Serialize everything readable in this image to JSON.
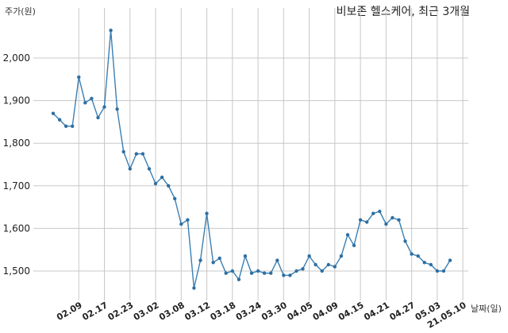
{
  "chart_data": {
    "type": "line",
    "title": "비보존 헬스케어, 최근 3개월",
    "ylabel": "주가(원)",
    "xlabel": "날짜(일)",
    "ylim": [
      1440,
      2080
    ],
    "yticks": [
      {
        "value": 1500,
        "label": "1,500"
      },
      {
        "value": 1600,
        "label": "1,600"
      },
      {
        "value": 1700,
        "label": "1,700"
      },
      {
        "value": 1800,
        "label": "1,800"
      },
      {
        "value": 1900,
        "label": "1,900"
      },
      {
        "value": 2000,
        "label": "2,000"
      }
    ],
    "xticks": [
      {
        "index": 4,
        "label": "02.09"
      },
      {
        "index": 8,
        "label": "02.17"
      },
      {
        "index": 12,
        "label": "02.23"
      },
      {
        "index": 16,
        "label": "03.02"
      },
      {
        "index": 20,
        "label": "03.08"
      },
      {
        "index": 24,
        "label": "03.12"
      },
      {
        "index": 28,
        "label": "03.18"
      },
      {
        "index": 32,
        "label": "03.24"
      },
      {
        "index": 36,
        "label": "03.30"
      },
      {
        "index": 40,
        "label": "04.05"
      },
      {
        "index": 44,
        "label": "04.09"
      },
      {
        "index": 48,
        "label": "04.15"
      },
      {
        "index": 52,
        "label": "04.21"
      },
      {
        "index": 56,
        "label": "04.27"
      },
      {
        "index": 60,
        "label": "05.03"
      },
      {
        "index": 64,
        "label": "21.05.10"
      }
    ],
    "grid": true,
    "series": [
      {
        "values": [
          1870,
          1855,
          1840,
          1840,
          1955,
          1895,
          1905,
          1860,
          1885,
          2065,
          1880,
          1780,
          1740,
          1775,
          1775,
          1740,
          1705,
          1720,
          1700,
          1670,
          1610,
          1620,
          1460,
          1525,
          1635,
          1520,
          1530,
          1495,
          1500,
          1480,
          1535,
          1495,
          1500,
          1495,
          1495,
          1525,
          1490,
          1490,
          1500,
          1505,
          1535,
          1515,
          1500,
          1515,
          1510,
          1535,
          1585,
          1560,
          1620,
          1615,
          1635,
          1640,
          1610,
          1625,
          1620,
          1570,
          1540,
          1535,
          1520,
          1515,
          1500,
          1500,
          1525
        ],
        "color": "#3a7fb3"
      }
    ]
  }
}
